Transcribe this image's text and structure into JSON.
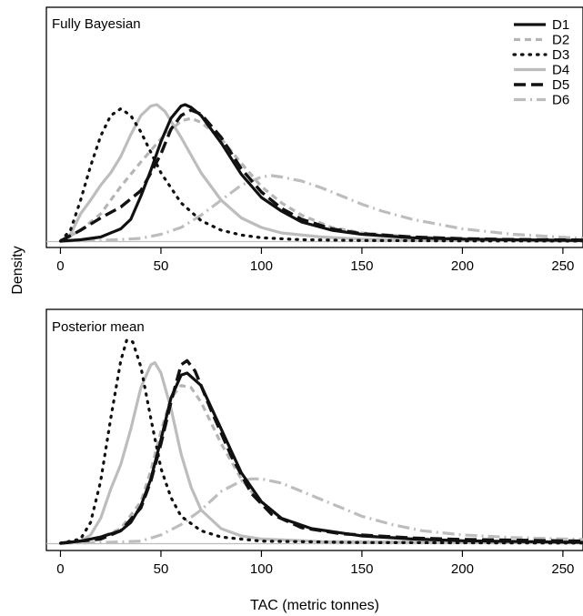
{
  "chart_data": [
    {
      "type": "line",
      "title": "Fully Bayesian",
      "xlabel": "",
      "ylabel": "Density",
      "xlim": [
        -7,
        260
      ],
      "x_ticks": [
        0,
        50,
        100,
        150,
        200,
        250
      ],
      "y_ticks_shown": false,
      "legend_position": "top-right",
      "series": [
        {
          "name": "D1",
          "color": "#111111",
          "style": "solid",
          "points": [
            [
              0,
              0.0
            ],
            [
              10,
              0.01
            ],
            [
              20,
              0.03
            ],
            [
              30,
              0.09
            ],
            [
              35,
              0.16
            ],
            [
              40,
              0.33
            ],
            [
              45,
              0.52
            ],
            [
              50,
              0.73
            ],
            [
              55,
              0.9
            ],
            [
              60,
              0.99
            ],
            [
              62,
              1.0
            ],
            [
              65,
              0.98
            ],
            [
              70,
              0.92
            ],
            [
              80,
              0.72
            ],
            [
              90,
              0.49
            ],
            [
              100,
              0.32
            ],
            [
              110,
              0.22
            ],
            [
              120,
              0.14
            ],
            [
              135,
              0.08
            ],
            [
              150,
              0.05
            ],
            [
              175,
              0.025
            ],
            [
              200,
              0.015
            ],
            [
              225,
              0.01
            ],
            [
              260,
              0.005
            ]
          ]
        },
        {
          "name": "D2",
          "color": "#b5b5b5",
          "style": "dashed",
          "points": [
            [
              0,
              0.0
            ],
            [
              10,
              0.08
            ],
            [
              20,
              0.2
            ],
            [
              30,
              0.4
            ],
            [
              40,
              0.58
            ],
            [
              50,
              0.75
            ],
            [
              60,
              0.88
            ],
            [
              65,
              0.9
            ],
            [
              70,
              0.87
            ],
            [
              80,
              0.75
            ],
            [
              90,
              0.57
            ],
            [
              100,
              0.4
            ],
            [
              110,
              0.28
            ],
            [
              120,
              0.19
            ],
            [
              135,
              0.1
            ],
            [
              150,
              0.06
            ],
            [
              175,
              0.03
            ],
            [
              200,
              0.017
            ],
            [
              225,
              0.01
            ],
            [
              260,
              0.005
            ]
          ]
        },
        {
          "name": "D3",
          "color": "#111111",
          "style": "dotted",
          "points": [
            [
              0,
              0.0
            ],
            [
              5,
              0.08
            ],
            [
              10,
              0.3
            ],
            [
              15,
              0.55
            ],
            [
              20,
              0.77
            ],
            [
              25,
              0.92
            ],
            [
              30,
              0.97
            ],
            [
              35,
              0.92
            ],
            [
              40,
              0.8
            ],
            [
              45,
              0.65
            ],
            [
              50,
              0.5
            ],
            [
              60,
              0.28
            ],
            [
              70,
              0.15
            ],
            [
              80,
              0.08
            ],
            [
              90,
              0.045
            ],
            [
              100,
              0.025
            ],
            [
              120,
              0.01
            ],
            [
              150,
              0.005
            ],
            [
              200,
              0.002
            ],
            [
              260,
              0.001
            ]
          ]
        },
        {
          "name": "D4",
          "color": "#bdbdbd",
          "style": "solid",
          "points": [
            [
              0,
              0.0
            ],
            [
              5,
              0.05
            ],
            [
              10,
              0.2
            ],
            [
              15,
              0.3
            ],
            [
              20,
              0.41
            ],
            [
              25,
              0.5
            ],
            [
              30,
              0.62
            ],
            [
              35,
              0.78
            ],
            [
              40,
              0.92
            ],
            [
              45,
              0.99
            ],
            [
              48,
              1.0
            ],
            [
              52,
              0.95
            ],
            [
              60,
              0.76
            ],
            [
              70,
              0.5
            ],
            [
              80,
              0.3
            ],
            [
              90,
              0.17
            ],
            [
              100,
              0.1
            ],
            [
              110,
              0.06
            ],
            [
              130,
              0.03
            ],
            [
              150,
              0.015
            ],
            [
              200,
              0.005
            ],
            [
              260,
              0.001
            ]
          ]
        },
        {
          "name": "D5",
          "color": "#111111",
          "style": "longdash",
          "points": [
            [
              0,
              0.0
            ],
            [
              10,
              0.08
            ],
            [
              20,
              0.17
            ],
            [
              30,
              0.25
            ],
            [
              40,
              0.37
            ],
            [
              45,
              0.5
            ],
            [
              50,
              0.64
            ],
            [
              55,
              0.82
            ],
            [
              60,
              0.92
            ],
            [
              65,
              0.96
            ],
            [
              70,
              0.93
            ],
            [
              80,
              0.76
            ],
            [
              90,
              0.53
            ],
            [
              100,
              0.36
            ],
            [
              110,
              0.24
            ],
            [
              120,
              0.16
            ],
            [
              135,
              0.09
            ],
            [
              150,
              0.055
            ],
            [
              175,
              0.03
            ],
            [
              200,
              0.018
            ],
            [
              225,
              0.012
            ],
            [
              260,
              0.008
            ]
          ]
        },
        {
          "name": "D6",
          "color": "#bdbdbd",
          "style": "dashdot",
          "points": [
            [
              0,
              0.0
            ],
            [
              20,
              0.005
            ],
            [
              40,
              0.02
            ],
            [
              50,
              0.05
            ],
            [
              60,
              0.1
            ],
            [
              70,
              0.19
            ],
            [
              80,
              0.3
            ],
            [
              90,
              0.41
            ],
            [
              100,
              0.47
            ],
            [
              105,
              0.48
            ],
            [
              110,
              0.47
            ],
            [
              120,
              0.44
            ],
            [
              130,
              0.39
            ],
            [
              140,
              0.33
            ],
            [
              150,
              0.27
            ],
            [
              160,
              0.22
            ],
            [
              175,
              0.16
            ],
            [
              200,
              0.09
            ],
            [
              225,
              0.05
            ],
            [
              260,
              0.02
            ]
          ]
        }
      ]
    },
    {
      "type": "line",
      "title": "Posterior mean",
      "xlabel": "TAC (metric tonnes)",
      "ylabel": "Density",
      "xlim": [
        -7,
        260
      ],
      "x_ticks": [
        0,
        50,
        100,
        150,
        200,
        250
      ],
      "y_ticks_shown": false,
      "series": [
        {
          "name": "D1",
          "color": "#111111",
          "style": "solid",
          "points": [
            [
              0,
              0.0
            ],
            [
              10,
              0.01
            ],
            [
              20,
              0.03
            ],
            [
              30,
              0.06
            ],
            [
              35,
              0.1
            ],
            [
              40,
              0.18
            ],
            [
              45,
              0.31
            ],
            [
              50,
              0.5
            ],
            [
              55,
              0.7
            ],
            [
              60,
              0.81
            ],
            [
              63,
              0.82
            ],
            [
              70,
              0.76
            ],
            [
              80,
              0.55
            ],
            [
              90,
              0.34
            ],
            [
              100,
              0.2
            ],
            [
              110,
              0.12
            ],
            [
              125,
              0.07
            ],
            [
              150,
              0.035
            ],
            [
              175,
              0.02
            ],
            [
              200,
              0.012
            ],
            [
              260,
              0.004
            ]
          ]
        },
        {
          "name": "D2",
          "color": "#b5b5b5",
          "style": "dashed",
          "points": [
            [
              0,
              0.0
            ],
            [
              10,
              0.01
            ],
            [
              20,
              0.03
            ],
            [
              30,
              0.07
            ],
            [
              40,
              0.2
            ],
            [
              45,
              0.35
            ],
            [
              50,
              0.54
            ],
            [
              55,
              0.7
            ],
            [
              60,
              0.76
            ],
            [
              65,
              0.75
            ],
            [
              70,
              0.68
            ],
            [
              80,
              0.48
            ],
            [
              90,
              0.31
            ],
            [
              100,
              0.19
            ],
            [
              110,
              0.12
            ],
            [
              125,
              0.07
            ],
            [
              150,
              0.035
            ],
            [
              200,
              0.012
            ],
            [
              260,
              0.005
            ]
          ]
        },
        {
          "name": "D3",
          "color": "#111111",
          "style": "dotted",
          "points": [
            [
              0,
              0.0
            ],
            [
              10,
              0.02
            ],
            [
              15,
              0.1
            ],
            [
              20,
              0.3
            ],
            [
              25,
              0.6
            ],
            [
              30,
              0.88
            ],
            [
              33,
              0.98
            ],
            [
              36,
              0.97
            ],
            [
              40,
              0.85
            ],
            [
              45,
              0.6
            ],
            [
              50,
              0.36
            ],
            [
              55,
              0.22
            ],
            [
              60,
              0.13
            ],
            [
              70,
              0.06
            ],
            [
              80,
              0.03
            ],
            [
              100,
              0.01
            ],
            [
              150,
              0.003
            ],
            [
              260,
              0.001
            ]
          ]
        },
        {
          "name": "D4",
          "color": "#bdbdbd",
          "style": "solid",
          "points": [
            [
              0,
              0.0
            ],
            [
              10,
              0.01
            ],
            [
              15,
              0.04
            ],
            [
              20,
              0.12
            ],
            [
              25,
              0.26
            ],
            [
              30,
              0.38
            ],
            [
              35,
              0.55
            ],
            [
              40,
              0.75
            ],
            [
              45,
              0.86
            ],
            [
              47,
              0.87
            ],
            [
              50,
              0.82
            ],
            [
              55,
              0.65
            ],
            [
              60,
              0.43
            ],
            [
              65,
              0.27
            ],
            [
              70,
              0.16
            ],
            [
              80,
              0.07
            ],
            [
              90,
              0.035
            ],
            [
              100,
              0.02
            ],
            [
              130,
              0.008
            ],
            [
              260,
              0.002
            ]
          ]
        },
        {
          "name": "D5",
          "color": "#111111",
          "style": "longdash",
          "points": [
            [
              0,
              0.0
            ],
            [
              10,
              0.01
            ],
            [
              20,
              0.02
            ],
            [
              30,
              0.06
            ],
            [
              40,
              0.17
            ],
            [
              45,
              0.3
            ],
            [
              50,
              0.48
            ],
            [
              55,
              0.68
            ],
            [
              60,
              0.86
            ],
            [
              63,
              0.88
            ],
            [
              67,
              0.83
            ],
            [
              75,
              0.64
            ],
            [
              85,
              0.42
            ],
            [
              95,
              0.24
            ],
            [
              105,
              0.14
            ],
            [
              120,
              0.075
            ],
            [
              140,
              0.045
            ],
            [
              175,
              0.025
            ],
            [
              200,
              0.018
            ],
            [
              260,
              0.01
            ]
          ]
        },
        {
          "name": "D6",
          "color": "#bdbdbd",
          "style": "dashdot",
          "points": [
            [
              0,
              0.0
            ],
            [
              20,
              0.003
            ],
            [
              40,
              0.01
            ],
            [
              50,
              0.04
            ],
            [
              60,
              0.09
            ],
            [
              70,
              0.16
            ],
            [
              80,
              0.25
            ],
            [
              90,
              0.3
            ],
            [
              95,
              0.31
            ],
            [
              100,
              0.31
            ],
            [
              110,
              0.29
            ],
            [
              120,
              0.25
            ],
            [
              130,
              0.21
            ],
            [
              140,
              0.17
            ],
            [
              150,
              0.13
            ],
            [
              165,
              0.09
            ],
            [
              180,
              0.06
            ],
            [
              200,
              0.04
            ],
            [
              225,
              0.027
            ],
            [
              260,
              0.018
            ]
          ]
        }
      ]
    }
  ]
}
